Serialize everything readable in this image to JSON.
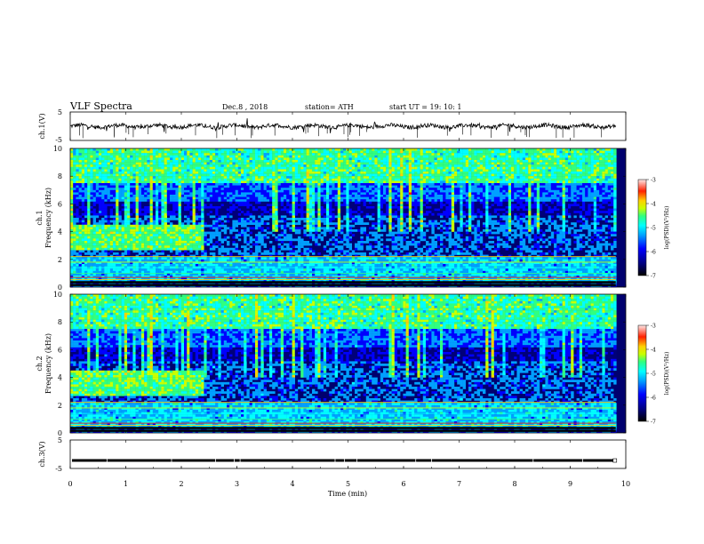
{
  "header": {
    "title": "VLF  Spectra",
    "date": "Dec.8  , 2018",
    "station": "station= ATH",
    "start": "start  UT  =    19: 10: 1"
  },
  "chart_data": [
    {
      "type": "line",
      "ylabel": "ch.1(V)",
      "ylim": [
        -5,
        5
      ],
      "yticks": [
        "5",
        "-5"
      ],
      "baseline_value": 0,
      "xlim": [
        0,
        10
      ]
    },
    {
      "type": "heatmap",
      "ylabel": "Frequency (kHz)",
      "channel_label": "ch.1",
      "ylim": [
        0,
        10
      ],
      "yticks": [
        "0",
        "2",
        "4",
        "6",
        "8",
        "10"
      ],
      "xlim": [
        0,
        10
      ],
      "colorbar": {
        "label": "log(PSD)(V²/Hz)",
        "range": [
          -7,
          -3
        ],
        "ticks": [
          "-3",
          "-4",
          "-5",
          "-6",
          "-7"
        ]
      }
    },
    {
      "type": "heatmap",
      "ylabel": "Frequency (kHz)",
      "channel_label": "ch.2",
      "ylim": [
        0,
        10
      ],
      "yticks": [
        "0",
        "2",
        "4",
        "6",
        "8",
        "10"
      ],
      "xlim": [
        0,
        10
      ],
      "colorbar": {
        "label": "log(PSD)(V²/Hz)",
        "range": [
          -7,
          -3
        ],
        "ticks": [
          "-3",
          "-4",
          "-5",
          "-6",
          "-7"
        ]
      }
    },
    {
      "type": "line",
      "ylabel": "ch.3(V)",
      "ylim": [
        -5,
        5
      ],
      "yticks": [
        "5",
        "-5"
      ],
      "xlim": [
        0,
        10
      ],
      "level": -2.2
    }
  ],
  "xaxis": {
    "label": "Time  (min)",
    "ticks": [
      "0",
      "1",
      "2",
      "3",
      "4",
      "5",
      "6",
      "7",
      "8",
      "9",
      "10"
    ],
    "data_end": 9.82
  },
  "colors": {
    "trace": "#000000",
    "colormap": [
      "#000000",
      "#00007a",
      "#0000ff",
      "#00a0ff",
      "#00ffff",
      "#30ff80",
      "#c8ff00",
      "#ffd000",
      "#ff2000",
      "#ffe8e8"
    ]
  }
}
